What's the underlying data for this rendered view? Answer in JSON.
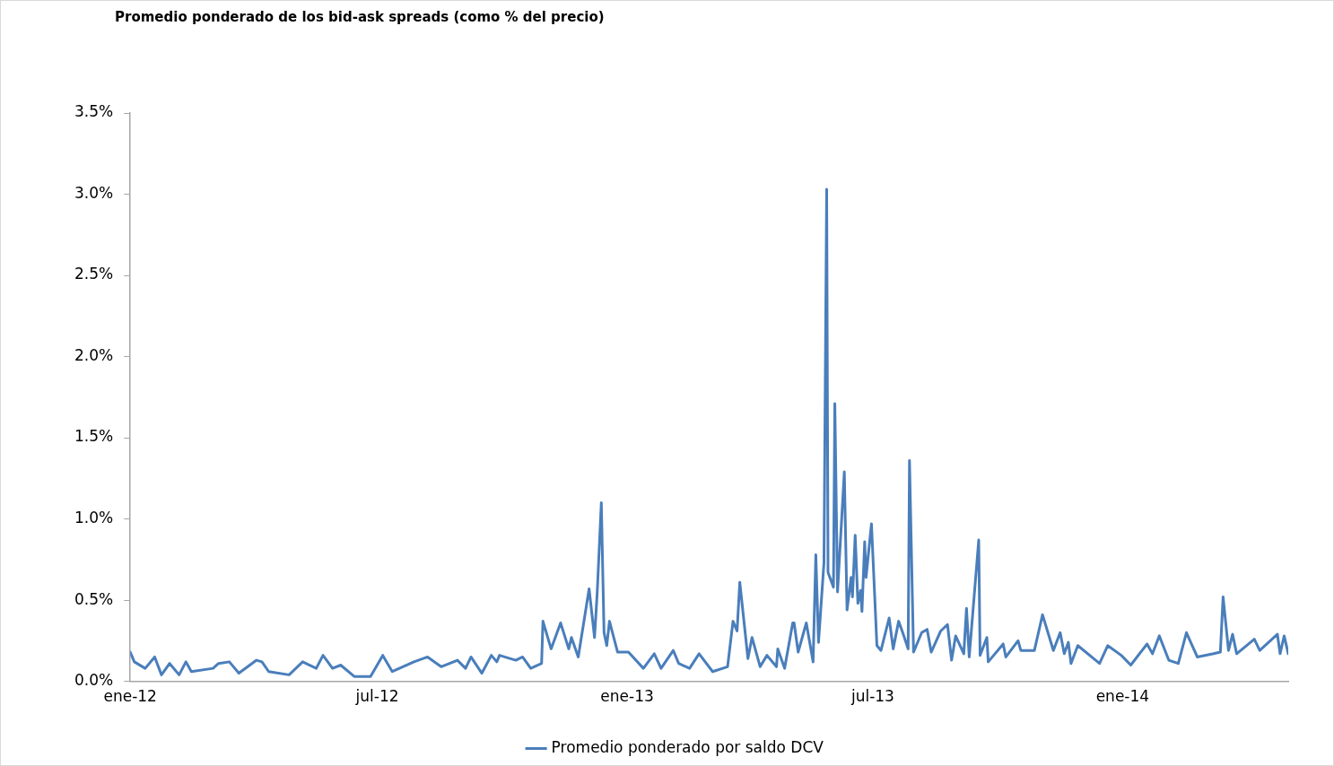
{
  "chart_data": {
    "type": "line",
    "title": "Promedio ponderado de los bid-ask spreads (como % del precio)",
    "x": [
      "2012-01-01",
      "2012-01-04",
      "2012-01-12",
      "2012-01-19",
      "2012-01-24",
      "2012-01-30",
      "2012-02-06",
      "2012-02-11",
      "2012-02-15",
      "2012-03-02",
      "2012-03-06",
      "2012-03-14",
      "2012-03-21",
      "2012-04-03",
      "2012-04-07",
      "2012-04-12",
      "2012-04-27",
      "2012-05-07",
      "2012-05-17",
      "2012-05-22",
      "2012-05-29",
      "2012-06-04",
      "2012-06-14",
      "2012-06-26",
      "2012-07-05",
      "2012-07-12",
      "2012-07-28",
      "2012-08-07",
      "2012-08-17",
      "2012-08-29",
      "2012-09-04",
      "2012-09-08",
      "2012-09-16",
      "2012-09-23",
      "2012-09-27",
      "2012-09-29",
      "2012-10-11",
      "2012-10-16",
      "2012-10-22",
      "2012-10-30",
      "2012-10-31",
      "2012-11-06",
      "2012-11-13",
      "2012-11-19",
      "2012-11-21",
      "2012-11-26",
      "2012-12-04",
      "2012-12-08",
      "2012-12-10",
      "2012-12-13",
      "2012-12-15",
      "2012-12-17",
      "2012-12-19",
      "2012-12-25",
      "2013-01-02",
      "2013-01-13",
      "2013-01-21",
      "2013-01-26",
      "2013-02-04",
      "2013-02-08",
      "2013-02-16",
      "2013-02-23",
      "2013-03-05",
      "2013-03-16",
      "2013-03-20",
      "2013-03-23",
      "2013-03-25",
      "2013-03-31",
      "2013-04-03",
      "2013-04-09",
      "2013-04-14",
      "2013-04-21",
      "2013-04-22",
      "2013-04-27",
      "2013-05-03",
      "2013-05-04",
      "2013-05-07",
      "2013-05-13",
      "2013-05-18",
      "2013-05-20",
      "2013-05-22",
      "2013-05-26",
      "2013-05-28",
      "2013-05-29",
      "2013-06-02",
      "2013-06-03",
      "2013-06-05",
      "2013-06-10",
      "2013-06-12",
      "2013-06-15",
      "2013-06-16",
      "2013-06-18",
      "2013-06-20",
      "2013-06-22",
      "2013-06-23",
      "2013-06-25",
      "2013-06-26",
      "2013-06-30",
      "2013-07-04",
      "2013-07-07",
      "2013-07-13",
      "2013-07-16",
      "2013-07-20",
      "2013-07-23",
      "2013-07-27",
      "2013-07-28",
      "2013-07-31",
      "2013-08-06",
      "2013-08-10",
      "2013-08-13",
      "2013-08-20",
      "2013-08-25",
      "2013-08-28",
      "2013-08-31",
      "2013-09-06",
      "2013-09-08",
      "2013-09-10",
      "2013-09-17",
      "2013-09-18",
      "2013-09-23",
      "2013-09-24",
      "2013-10-05",
      "2013-10-07",
      "2013-10-16",
      "2013-10-18",
      "2013-10-28",
      "2013-11-03",
      "2013-11-11",
      "2013-11-16",
      "2013-11-19",
      "2013-11-22",
      "2013-11-24",
      "2013-11-29",
      "2013-12-15",
      "2013-12-21",
      "2013-12-31",
      "2014-01-07",
      "2014-01-19",
      "2014-01-23",
      "2014-01-28",
      "2014-02-04",
      "2014-02-11",
      "2014-02-17",
      "2014-02-25",
      "2014-03-09",
      "2014-03-14",
      "2014-03-16",
      "2014-03-20",
      "2014-03-23",
      "2014-03-26",
      "2014-04-08",
      "2014-04-12",
      "2014-04-25",
      "2014-04-27",
      "2014-04-30",
      "2014-05-03"
    ],
    "series": [
      {
        "name": "Promedio ponderado por saldo DCV",
        "color": "#4a7ebb",
        "values": [
          0.18,
          0.12,
          0.08,
          0.15,
          0.04,
          0.11,
          0.04,
          0.12,
          0.06,
          0.08,
          0.11,
          0.12,
          0.05,
          0.13,
          0.12,
          0.06,
          0.04,
          0.12,
          0.08,
          0.16,
          0.08,
          0.1,
          0.03,
          0.03,
          0.16,
          0.06,
          0.12,
          0.15,
          0.09,
          0.13,
          0.08,
          0.15,
          0.05,
          0.16,
          0.12,
          0.16,
          0.13,
          0.15,
          0.08,
          0.11,
          0.37,
          0.2,
          0.36,
          0.2,
          0.27,
          0.15,
          0.57,
          0.27,
          0.55,
          1.1,
          0.3,
          0.22,
          0.37,
          0.18,
          0.18,
          0.08,
          0.17,
          0.08,
          0.19,
          0.11,
          0.08,
          0.17,
          0.06,
          0.09,
          0.37,
          0.31,
          0.61,
          0.14,
          0.27,
          0.09,
          0.16,
          0.09,
          0.2,
          0.08,
          0.36,
          0.36,
          0.18,
          0.36,
          0.12,
          0.78,
          0.24,
          0.73,
          3.03,
          0.67,
          0.58,
          1.71,
          0.55,
          1.29,
          0.44,
          0.64,
          0.52,
          0.9,
          0.48,
          0.56,
          0.43,
          0.86,
          0.64,
          0.97,
          0.22,
          0.19,
          0.39,
          0.2,
          0.37,
          0.3,
          0.2,
          1.36,
          0.18,
          0.3,
          0.32,
          0.18,
          0.31,
          0.35,
          0.13,
          0.28,
          0.17,
          0.45,
          0.15,
          0.87,
          0.16,
          0.27,
          0.12,
          0.23,
          0.15,
          0.25,
          0.19,
          0.19,
          0.41,
          0.19,
          0.3,
          0.17,
          0.24,
          0.11,
          0.22,
          0.11,
          0.22,
          0.16,
          0.1,
          0.23,
          0.17,
          0.28,
          0.13,
          0.11,
          0.3,
          0.15,
          0.17,
          0.18,
          0.52,
          0.19,
          0.29,
          0.17,
          0.26,
          0.19,
          0.29,
          0.17,
          0.28,
          0.17
        ]
      }
    ],
    "xlim": [
      "2012-01-01",
      "2014-05-03"
    ],
    "xticks": [
      {
        "value": "2012-01-01",
        "label": "ene-12"
      },
      {
        "value": "2012-07-01",
        "label": "jul-12"
      },
      {
        "value": "2013-01-01",
        "label": "ene-13"
      },
      {
        "value": "2013-07-01",
        "label": "jul-13"
      },
      {
        "value": "2014-01-01",
        "label": "ene-14"
      }
    ],
    "ylim": [
      0,
      3.5
    ],
    "yticks": [
      {
        "value": 0,
        "label": "0.0%"
      },
      {
        "value": 0.5,
        "label": "0.5%"
      },
      {
        "value": 1,
        "label": "1.0%"
      },
      {
        "value": 1.5,
        "label": "1.5%"
      },
      {
        "value": 2,
        "label": "2.0%"
      },
      {
        "value": 2.5,
        "label": "2.5%"
      },
      {
        "value": 3,
        "label": "3.0%"
      },
      {
        "value": 3.5,
        "label": "3.5%"
      }
    ],
    "grid": false,
    "legend": "bottom",
    "marker": "none",
    "line_style": "solid"
  }
}
